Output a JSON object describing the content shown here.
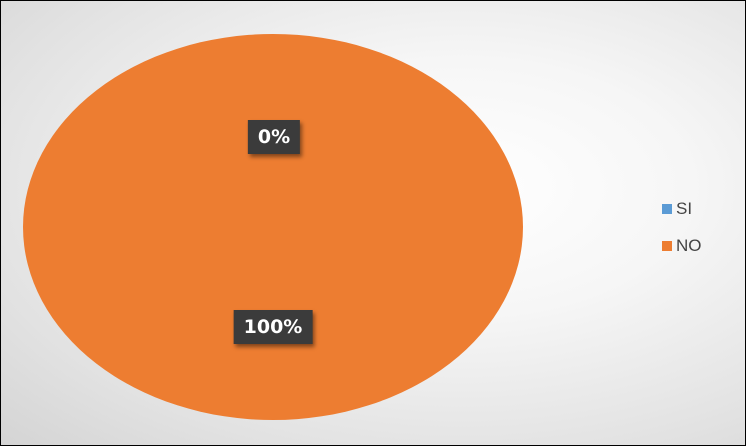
{
  "chart_data": {
    "type": "pie",
    "categories": [
      "SI",
      "NO"
    ],
    "values": [
      0,
      100
    ],
    "data_labels": [
      "0%",
      "100%"
    ],
    "colors": [
      "#5b9bd5",
      "#ed7d31"
    ],
    "legend_position": "right"
  }
}
